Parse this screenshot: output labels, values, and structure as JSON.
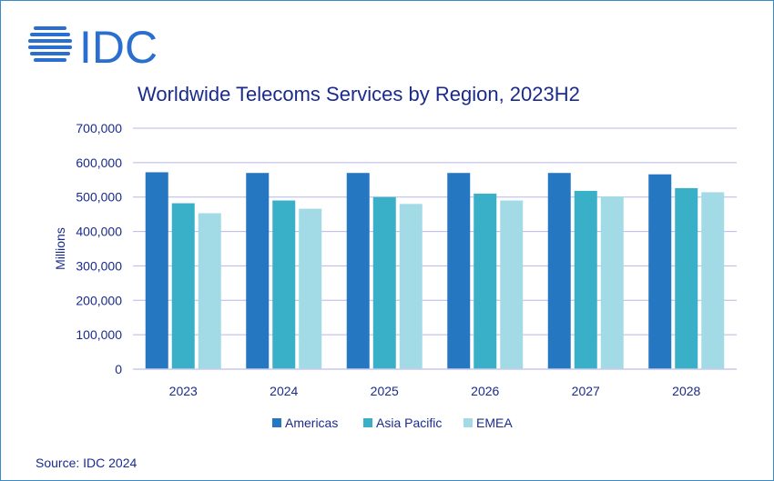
{
  "brand": {
    "logo_text": "IDC",
    "color": "#2a6fd0"
  },
  "title": "Worldwide Telecoms Services by Region, 2023H2",
  "source": "Source: IDC 2024",
  "colors": {
    "Americas": "#2677c2",
    "Asia Pacific": "#3ab0c8",
    "EMEA": "#a2dbe6",
    "text": "#1a2b8c",
    "grid": "#b7b7e6"
  },
  "chart_data": {
    "type": "bar",
    "title": "Worldwide Telecoms Services by Region, 2023H2",
    "xlabel": "",
    "ylabel": "Millions",
    "ylim": [
      0,
      700000
    ],
    "yticks": [
      "0",
      "100,000",
      "200,000",
      "300,000",
      "400,000",
      "500,000",
      "600,000",
      "700,000"
    ],
    "categories": [
      "2023",
      "2024",
      "2025",
      "2026",
      "2027",
      "2028"
    ],
    "series": [
      {
        "name": "Americas",
        "values": [
          572000,
          570000,
          570000,
          570000,
          570000,
          566000
        ]
      },
      {
        "name": "Asia Pacific",
        "values": [
          482000,
          490000,
          500000,
          510000,
          518000,
          526000
        ]
      },
      {
        "name": "EMEA",
        "values": [
          453000,
          466000,
          480000,
          490000,
          502000,
          514000
        ]
      }
    ],
    "grid": true,
    "legend": "bottom"
  }
}
